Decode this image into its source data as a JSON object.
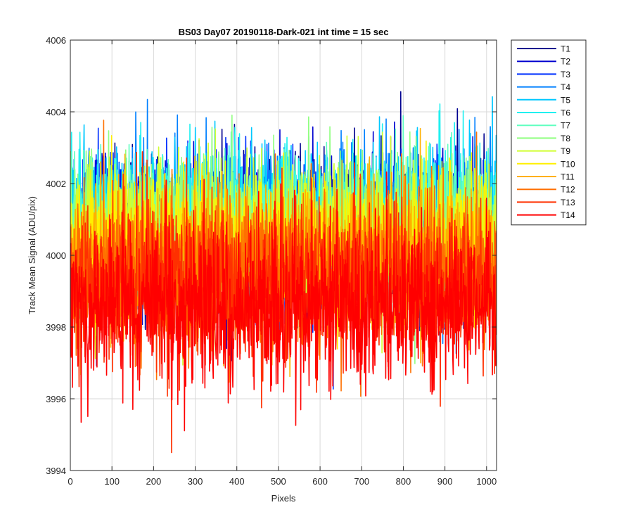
{
  "chart_data": {
    "type": "line",
    "title": "BS03 Day07 20190118-Dark-021 int time = 15 sec",
    "xlabel": "Pixels",
    "ylabel": "Track Mean Signal (ADU/pix)",
    "xlim": [
      0,
      1024
    ],
    "ylim": [
      3994,
      4006
    ],
    "xticks": [
      0,
      100,
      200,
      300,
      400,
      500,
      600,
      700,
      800,
      900,
      1000
    ],
    "yticks": [
      3994,
      3996,
      3998,
      4000,
      4002,
      4004,
      4006
    ],
    "grid": true,
    "legend_position": "outside-right-top",
    "points_per_series": 1024,
    "series": [
      {
        "name": "T1",
        "color": "#00008F",
        "mean": 4000.5,
        "spread": 1.5
      },
      {
        "name": "T2",
        "color": "#0000D0",
        "mean": 4000.6,
        "spread": 1.5
      },
      {
        "name": "T3",
        "color": "#0030FF",
        "mean": 4000.7,
        "spread": 1.4
      },
      {
        "name": "T4",
        "color": "#0080FF",
        "mean": 4000.8,
        "spread": 1.4
      },
      {
        "name": "T5",
        "color": "#00C8FF",
        "mean": 4000.9,
        "spread": 1.4
      },
      {
        "name": "T6",
        "color": "#20F0F0",
        "mean": 4001.0,
        "spread": 1.3
      },
      {
        "name": "T7",
        "color": "#60FFC0",
        "mean": 4000.9,
        "spread": 1.3
      },
      {
        "name": "T8",
        "color": "#90FF80",
        "mean": 4000.8,
        "spread": 1.3
      },
      {
        "name": "T9",
        "color": "#D0FF30",
        "mean": 4000.6,
        "spread": 1.3
      },
      {
        "name": "T10",
        "color": "#FFF000",
        "mean": 4000.3,
        "spread": 1.3
      },
      {
        "name": "T11",
        "color": "#FFB000",
        "mean": 3999.9,
        "spread": 1.4
      },
      {
        "name": "T12",
        "color": "#FF7000",
        "mean": 3999.6,
        "spread": 1.4
      },
      {
        "name": "T13",
        "color": "#FF3000",
        "mean": 3999.2,
        "spread": 1.5
      },
      {
        "name": "T14",
        "color": "#FF0000",
        "mean": 3998.6,
        "spread": 1.5
      }
    ]
  }
}
